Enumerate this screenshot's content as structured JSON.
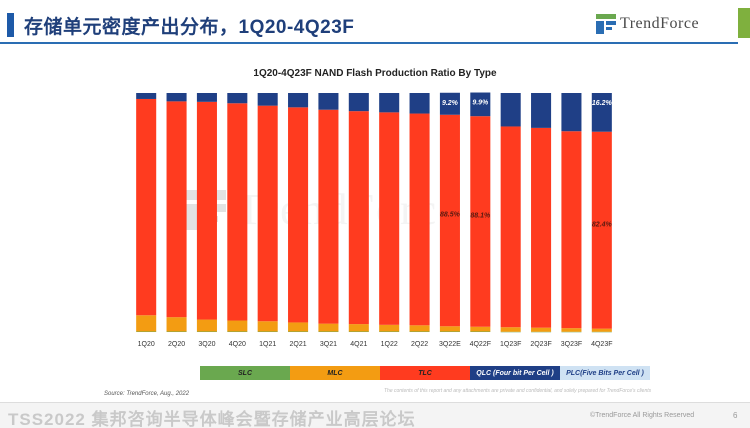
{
  "slide": {
    "title": "存储单元密度产出分布，1Q20-4Q23F",
    "brand": "TrendForce",
    "source": "Source: TrendForce, Aug., 2022",
    "disclaimer": "The contents of this report and any attachments are private and confidential, and solely prepared for TrendForce's clients",
    "footer_event": "TSS2022 集邦咨询半导体峰会暨存储产业高层论坛",
    "footer_rights": "©TrendForce All Rights Reserved",
    "page_number": "6",
    "watermark_text": "TrendForce"
  },
  "colors": {
    "SLC": "#6aa84f",
    "MLC": "#f39c12",
    "TLC": "#ff3b1f",
    "QLC": "#1f3f86",
    "PLC": "#cfe2f3"
  },
  "chart_data": {
    "type": "bar",
    "stacked": true,
    "title": "1Q20-4Q23F NAND Flash Production Ratio By Type",
    "xlabel": "",
    "ylabel": "",
    "ylim": [
      0,
      100
    ],
    "grid": false,
    "legend_position": "bottom",
    "categories": [
      "1Q20",
      "2Q20",
      "3Q20",
      "4Q20",
      "1Q21",
      "2Q21",
      "3Q21",
      "4Q21",
      "1Q22",
      "2Q22",
      "3Q22E",
      "4Q22F",
      "1Q23F",
      "2Q23F",
      "3Q23F",
      "4Q23F"
    ],
    "series": [
      {
        "name": "SLC",
        "values": [
          0.2,
          0.2,
          0.2,
          0.2,
          0.2,
          0.2,
          0.2,
          0.2,
          0.2,
          0.2,
          0.2,
          0.2,
          0.1,
          0.1,
          0.1,
          0.1
        ]
      },
      {
        "name": "MLC",
        "values": [
          6.8,
          6.0,
          5.0,
          4.6,
          4.3,
          3.8,
          3.3,
          3.1,
          2.8,
          2.6,
          2.2,
          2.0,
          1.9,
          1.7,
          1.5,
          1.3
        ]
      },
      {
        "name": "TLC",
        "values": [
          90.5,
          90.3,
          91.1,
          90.9,
          90.2,
          90.0,
          89.5,
          89.1,
          88.9,
          88.6,
          88.5,
          88.1,
          84.0,
          83.6,
          82.4,
          82.4
        ]
      },
      {
        "name": "QLC",
        "values": [
          2.5,
          3.5,
          3.7,
          4.3,
          5.3,
          6.0,
          7.0,
          7.6,
          8.1,
          8.6,
          9.2,
          9.9,
          14.0,
          14.6,
          16.0,
          16.2
        ]
      },
      {
        "name": "PLC",
        "values": [
          0,
          0,
          0,
          0,
          0,
          0,
          0,
          0,
          0,
          0,
          0,
          0,
          0,
          0,
          0,
          0
        ]
      }
    ],
    "data_labels": [
      {
        "category": "3Q22E",
        "series": "QLC",
        "text": "9.2%"
      },
      {
        "category": "4Q22F",
        "series": "QLC",
        "text": "9.9%"
      },
      {
        "category": "4Q23F",
        "series": "QLC",
        "text": "16.2%"
      },
      {
        "category": "3Q22E",
        "series": "TLC",
        "text": "88.5%"
      },
      {
        "category": "4Q22F",
        "series": "TLC",
        "text": "88.1%"
      },
      {
        "category": "4Q23F",
        "series": "TLC",
        "text": "82.4%"
      }
    ],
    "legend": [
      {
        "key": "SLC",
        "label": "SLC"
      },
      {
        "key": "MLC",
        "label": "MLC"
      },
      {
        "key": "TLC",
        "label": "TLC"
      },
      {
        "key": "QLC",
        "label": "QLC (Four bit Per Cell )"
      },
      {
        "key": "PLC",
        "label": "PLC(Five Bits Per Cell )"
      }
    ]
  }
}
